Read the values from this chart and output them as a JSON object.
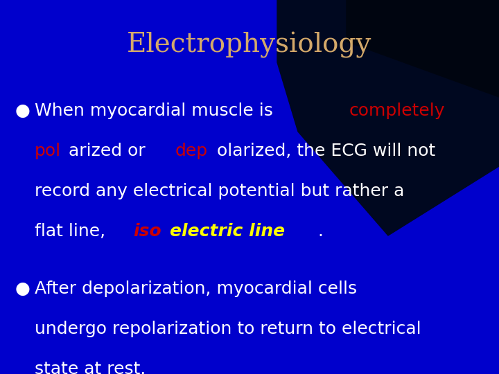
{
  "title": "Electrophysiology",
  "title_color": "#D4A96A",
  "title_fontsize": 28,
  "bg_blue": "#0000cc",
  "bg_dark": "#000033",
  "line1_segs": [
    {
      "text": "When myocardial muscle is ",
      "color": "#ffffff",
      "style": "normal",
      "weight": "normal"
    },
    {
      "text": "completely",
      "color": "#cc0000",
      "style": "normal",
      "weight": "normal"
    }
  ],
  "line2_segs": [
    {
      "text": "pol",
      "color": "#cc0000",
      "style": "normal",
      "weight": "normal"
    },
    {
      "text": "arized or ",
      "color": "#ffffff",
      "style": "normal",
      "weight": "normal"
    },
    {
      "text": "dep",
      "color": "#cc0000",
      "style": "normal",
      "weight": "normal"
    },
    {
      "text": "olarized, the ECG will not",
      "color": "#ffffff",
      "style": "normal",
      "weight": "normal"
    }
  ],
  "line3_segs": [
    {
      "text": "record any electrical potential but rather a",
      "color": "#ffffff",
      "style": "normal",
      "weight": "normal"
    }
  ],
  "line4_segs": [
    {
      "text": "flat line, ",
      "color": "#ffffff",
      "style": "normal",
      "weight": "normal"
    },
    {
      "text": "iso",
      "color": "#cc0000",
      "style": "italic",
      "weight": "bold"
    },
    {
      "text": "electric line",
      "color": "#ffff00",
      "style": "italic",
      "weight": "bold"
    },
    {
      "text": ".",
      "color": "#ffffff",
      "style": "normal",
      "weight": "normal"
    }
  ],
  "bullet2_lines": [
    "After depolarization, myocardial cells",
    "undergo repolarization to return to electrical",
    "state at rest."
  ],
  "bullet2_color": "#ffffff",
  "bullet_color": "#ffffff",
  "text_fontsize": 18,
  "fig_width": 7.2,
  "fig_height": 5.4,
  "dpi": 100,
  "arc_color": "#6677bb",
  "blue_shape_color": "#2244ee",
  "dark_corner_color": "#000820"
}
